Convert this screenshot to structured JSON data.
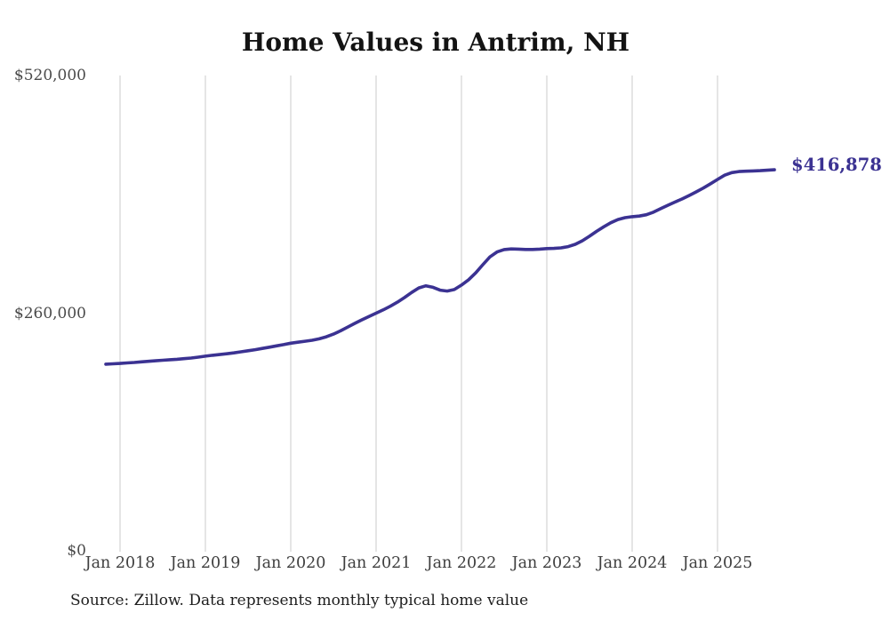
{
  "chart": {
    "title": "Home Values in Antrim, NH",
    "end_label": "$416,878",
    "source_note": "Source: Zillow. Data represents monthly typical home value",
    "colors": {
      "line": "#3b3292",
      "grid": "#cbcbcb",
      "title_text": "#131313",
      "axis_text": "#4a4a4a",
      "end_label_text": "#3b3292",
      "source_text": "#1e1e1e",
      "background": "#ffffff"
    }
  },
  "chart_data": {
    "type": "line",
    "title": "Home Values in Antrim, NH",
    "xlabel": "",
    "ylabel": "",
    "ylim": [
      0,
      520000
    ],
    "grid": "vertical-only",
    "legend": "none",
    "y_ticks": [
      {
        "label": "$0",
        "value": 0
      },
      {
        "label": "$260,000",
        "value": 260000
      },
      {
        "label": "$520,000",
        "value": 520000
      }
    ],
    "x_ticks": [
      {
        "label": "Jan 2018",
        "month": "2018-01"
      },
      {
        "label": "Jan 2019",
        "month": "2019-01"
      },
      {
        "label": "Jan 2020",
        "month": "2020-01"
      },
      {
        "label": "Jan 2021",
        "month": "2021-01"
      },
      {
        "label": "Jan 2022",
        "month": "2022-01"
      },
      {
        "label": "Jan 2023",
        "month": "2023-01"
      },
      {
        "label": "Jan 2024",
        "month": "2024-01"
      },
      {
        "label": "Jan 2025",
        "month": "2025-01"
      }
    ],
    "final_value": 416878,
    "series": [
      {
        "name": "Monthly typical home value",
        "months": [
          "2017-11",
          "2017-12",
          "2018-01",
          "2018-02",
          "2018-03",
          "2018-04",
          "2018-05",
          "2018-06",
          "2018-07",
          "2018-08",
          "2018-09",
          "2018-10",
          "2018-11",
          "2018-12",
          "2019-01",
          "2019-02",
          "2019-03",
          "2019-04",
          "2019-05",
          "2019-06",
          "2019-07",
          "2019-08",
          "2019-09",
          "2019-10",
          "2019-11",
          "2019-12",
          "2020-01",
          "2020-02",
          "2020-03",
          "2020-04",
          "2020-05",
          "2020-06",
          "2020-07",
          "2020-08",
          "2020-09",
          "2020-10",
          "2020-11",
          "2020-12",
          "2021-01",
          "2021-02",
          "2021-03",
          "2021-04",
          "2021-05",
          "2021-06",
          "2021-07",
          "2021-08",
          "2021-09",
          "2021-10",
          "2021-11",
          "2021-12",
          "2022-01",
          "2022-02",
          "2022-03",
          "2022-04",
          "2022-05",
          "2022-06",
          "2022-07",
          "2022-08",
          "2022-09",
          "2022-10",
          "2022-11",
          "2022-12",
          "2023-01",
          "2023-02",
          "2023-03",
          "2023-04",
          "2023-05",
          "2023-06",
          "2023-07",
          "2023-08",
          "2023-09",
          "2023-10",
          "2023-11",
          "2023-12",
          "2024-01",
          "2024-02",
          "2024-03",
          "2024-04",
          "2024-05",
          "2024-06",
          "2024-07",
          "2024-08",
          "2024-09",
          "2024-10",
          "2024-11",
          "2024-12",
          "2025-01",
          "2025-02",
          "2025-03",
          "2025-04",
          "2025-05",
          "2025-06",
          "2025-07",
          "2025-08",
          "2025-09"
        ],
        "values": [
          204200,
          204600,
          205000,
          205600,
          206100,
          206700,
          207300,
          207900,
          208500,
          209100,
          209600,
          210200,
          210900,
          211900,
          213000,
          213900,
          214700,
          215600,
          216600,
          217700,
          218900,
          220100,
          221400,
          222800,
          224200,
          225600,
          227100,
          228200,
          229300,
          230400,
          231900,
          234100,
          237100,
          240700,
          244700,
          248800,
          252700,
          256400,
          260000,
          263600,
          267600,
          272100,
          277100,
          282600,
          287600,
          289900,
          288300,
          285200,
          284200,
          285900,
          290700,
          296500,
          304000,
          313000,
          321500,
          327000,
          329600,
          330300,
          330100,
          329700,
          329700,
          330100,
          330700,
          330900,
          331400,
          332800,
          335300,
          339200,
          344200,
          349500,
          354500,
          358900,
          362400,
          364500,
          365600,
          366200,
          367700,
          370500,
          374300,
          378000,
          381500,
          384900,
          388700,
          392700,
          396900,
          401500,
          406300,
          410900,
          413800,
          414900,
          415300,
          415600,
          415900,
          416400,
          416878
        ]
      }
    ]
  }
}
